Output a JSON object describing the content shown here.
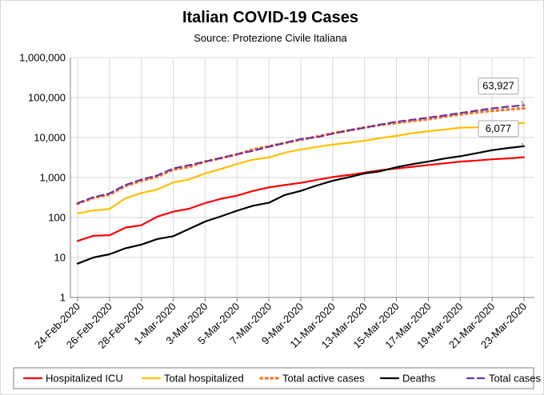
{
  "chart_data": {
    "type": "line",
    "title": "Italian COVID-19 Cases",
    "subtitle": "Source: Protezione Civile Italiana",
    "y_scale": "log",
    "ylim": [
      1,
      1000000
    ],
    "y_ticks": [
      "1",
      "10",
      "100",
      "1,000",
      "10,000",
      "100,000",
      "1,000,000"
    ],
    "x": [
      "24-Feb-2020",
      "25-Feb-2020",
      "26-Feb-2020",
      "27-Feb-2020",
      "28-Feb-2020",
      "29-Feb-2020",
      "1-Mar-2020",
      "2-Mar-2020",
      "3-Mar-2020",
      "4-Mar-2020",
      "5-Mar-2020",
      "6-Mar-2020",
      "7-Mar-2020",
      "8-Mar-2020",
      "9-Mar-2020",
      "10-Mar-2020",
      "11-Mar-2020",
      "12-Mar-2020",
      "13-Mar-2020",
      "14-Mar-2020",
      "15-Mar-2020",
      "16-Mar-2020",
      "17-Mar-2020",
      "18-Mar-2020",
      "19-Mar-2020",
      "20-Mar-2020",
      "21-Mar-2020",
      "22-Mar-2020",
      "23-Mar-2020"
    ],
    "x_tick_labels": [
      "24-Feb-2020",
      "26-Feb-2020",
      "28-Feb-2020",
      "1-Mar-2020",
      "3-Mar-2020",
      "5-Mar-2020",
      "7-Mar-2020",
      "9-Mar-2020",
      "11-Mar-2020",
      "13-Mar-2020",
      "15-Mar-2020",
      "17-Mar-2020",
      "19-Mar-2020",
      "21-Mar-2020",
      "23-Mar-2020"
    ],
    "grid": true,
    "legend_position": "bottom",
    "series": [
      {
        "name": "Hospitalized ICU",
        "color": "#ff0000",
        "style": "solid",
        "values": [
          26,
          35,
          36,
          56,
          64,
          105,
          140,
          166,
          229,
          295,
          351,
          462,
          567,
          650,
          733,
          877,
          1028,
          1153,
          1328,
          1518,
          1672,
          1851,
          2060,
          2257,
          2498,
          2655,
          2857,
          3009,
          3204
        ]
      },
      {
        "name": "Total hospitalized",
        "color": "#ffc000",
        "style": "solid",
        "values": [
          127,
          150,
          164,
          304,
          409,
          506,
          753,
          900,
          1263,
          1641,
          2175,
          2795,
          3184,
          4185,
          5038,
          5838,
          6650,
          7426,
          8372,
          9663,
          11025,
          12894,
          14363,
          15757,
          17708,
          17966,
          19846,
          21476,
          23353
        ]
      },
      {
        "name": "Total active cases",
        "color": "#ed7d31",
        "style": "dotted",
        "values": [
          221,
          311,
          374,
          615,
          825,
          1049,
          1568,
          1841,
          2502,
          3054,
          3751,
          5028,
          6017,
          7279,
          8850,
          10590,
          12839,
          14955,
          17750,
          20603,
          23073,
          26062,
          28710,
          33190,
          37860,
          42681,
          46638,
          50418,
          54030
        ]
      },
      {
        "name": "Deaths",
        "color": "#000000",
        "style": "solid",
        "values": [
          7,
          10,
          12,
          17,
          21,
          29,
          34,
          52,
          79,
          107,
          148,
          197,
          233,
          366,
          463,
          631,
          827,
          1016,
          1266,
          1441,
          1809,
          2158,
          2503,
          2978,
          3405,
          4032,
          4825,
          5476,
          6077
        ]
      },
      {
        "name": "Total cases",
        "color": "#7030a0",
        "style": "dashed",
        "values": [
          229,
          322,
          400,
          650,
          888,
          1128,
          1694,
          2036,
          2502,
          3089,
          3858,
          4636,
          5883,
          7375,
          9172,
          10149,
          12462,
          15113,
          17660,
          21157,
          24747,
          27980,
          31506,
          35713,
          41035,
          47021,
          53578,
          59138,
          63927
        ]
      }
    ],
    "annotations": [
      {
        "series": "Total cases",
        "label": "63,927"
      },
      {
        "series": "Deaths",
        "label": "6,077"
      }
    ]
  }
}
